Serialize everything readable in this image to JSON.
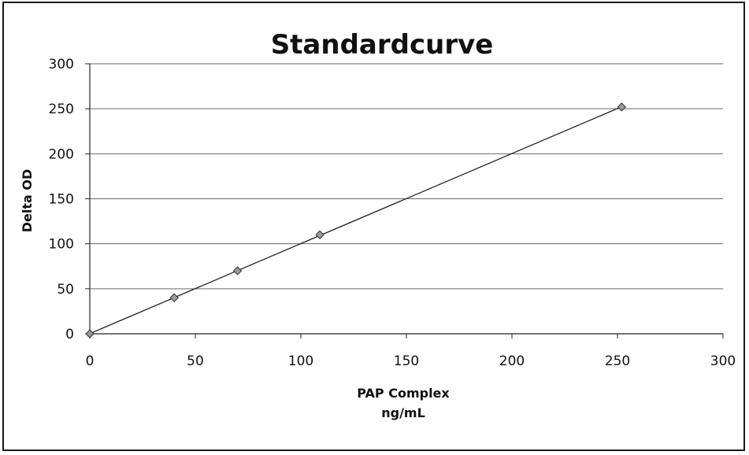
{
  "chart_data": {
    "type": "scatter",
    "title": "Standardcurve",
    "xlabel": [
      "PAP Complex",
      "ng/mL"
    ],
    "ylabel": "Delta OD",
    "xlim": [
      0,
      300
    ],
    "ylim": [
      0,
      300
    ],
    "xticks": [
      0,
      50,
      100,
      150,
      200,
      250,
      300
    ],
    "yticks": [
      0,
      50,
      100,
      150,
      200,
      250,
      300
    ],
    "grid": "horizontal",
    "legend": "none",
    "series": [
      {
        "x": [
          0,
          40,
          70,
          109,
          252
        ],
        "y": [
          0,
          40,
          70,
          110,
          252
        ],
        "marker": "diamond",
        "trendline": true
      }
    ],
    "colors": {
      "marker_fill": "#9a9a9a",
      "line": "#222222",
      "grid": "#6a6a6a"
    }
  }
}
